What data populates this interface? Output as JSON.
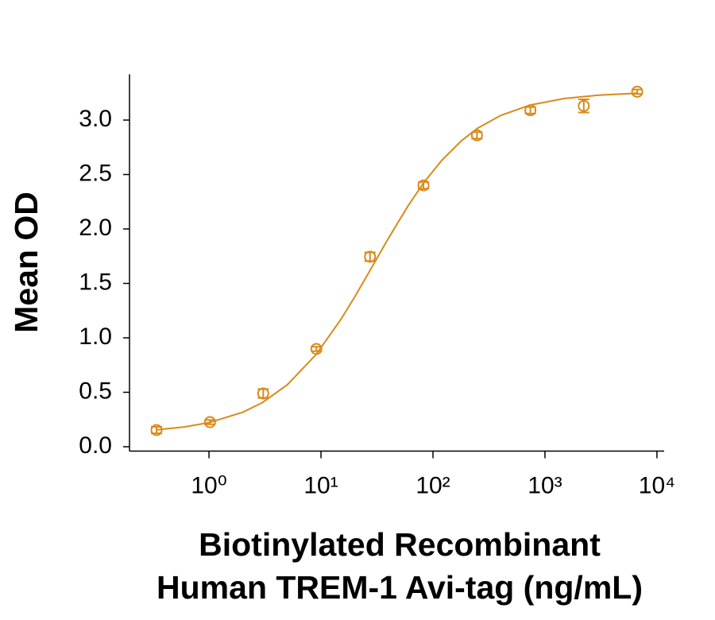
{
  "chart_data": {
    "type": "scatter",
    "xlabel": [
      "Biotinylated Recombinant",
      "Human TREM-1 Avi-tag (ng/mL)"
    ],
    "ylabel": "Mean OD",
    "xlog": true,
    "xlim": [
      0.195,
      11600
    ],
    "ylim": [
      -0.04,
      3.42
    ],
    "xticks": [
      {
        "value": 1,
        "label": "10⁰"
      },
      {
        "value": 10,
        "label": "10¹"
      },
      {
        "value": 100,
        "label": "10²"
      },
      {
        "value": 1000,
        "label": "10³"
      },
      {
        "value": 10000,
        "label": "10⁴"
      }
    ],
    "yticks": [
      {
        "value": 0,
        "label": "0.0"
      },
      0.5,
      {
        "value": 1,
        "label": "1.0"
      },
      1.5,
      {
        "value": 2,
        "label": "2.0"
      },
      2.5,
      {
        "value": 3,
        "label": "3.0"
      }
    ],
    "color": "#d98a1a",
    "x": [
      0.34,
      1.02,
      3.05,
      9.1,
      27.4,
      82.3,
      247,
      741,
      2222,
      6667
    ],
    "values": [
      0.153,
      0.226,
      0.489,
      0.898,
      1.745,
      2.4,
      2.86,
      3.09,
      3.13,
      3.26
    ],
    "errors": [
      0.03,
      0.02,
      0.04,
      0.02,
      0.04,
      0.03,
      0.03,
      0.03,
      0.06,
      0.02
    ],
    "fit": {
      "x": [
        0.34,
        0.6,
        1,
        2,
        3,
        5,
        9,
        15,
        20,
        27,
        40,
        60,
        82,
        120,
        180,
        250,
        400,
        740,
        1500,
        3000,
        6700
      ],
      "values": [
        0.155,
        0.182,
        0.221,
        0.316,
        0.405,
        0.569,
        0.845,
        1.167,
        1.376,
        1.607,
        1.914,
        2.213,
        2.419,
        2.632,
        2.811,
        2.924,
        3.041,
        3.138,
        3.198,
        3.229,
        3.246
      ]
    }
  }
}
